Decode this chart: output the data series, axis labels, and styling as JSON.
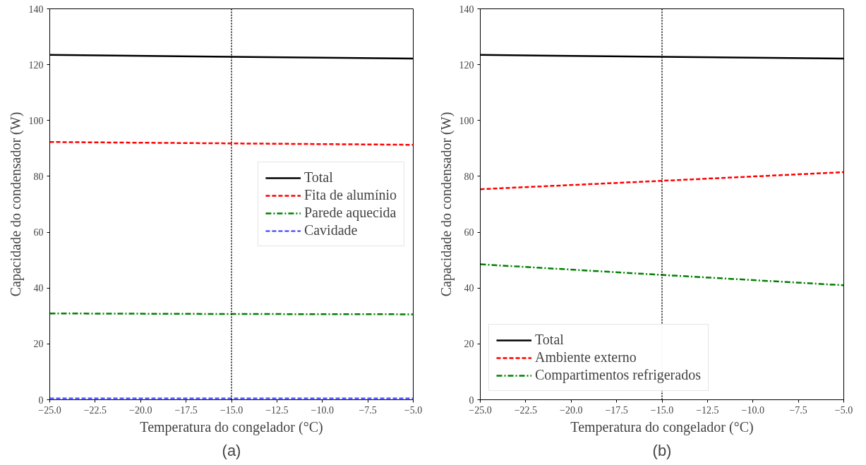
{
  "chart_data": [
    {
      "type": "line",
      "xlabel": "Temperatura do congelador (°C)",
      "ylabel": "Capacidade do condensador (W)",
      "x": [
        -25,
        -15,
        -5
      ],
      "series": [
        {
          "name": "Total",
          "color": "#000000",
          "line_style": "solid",
          "values": [
            123.5,
            122.8,
            122.2
          ]
        },
        {
          "name": "Fita de alumínio",
          "color": "#ff0000",
          "line_style": "dashed",
          "values": [
            92.3,
            91.8,
            91.3
          ]
        },
        {
          "name": "Parede aquecida",
          "color": "#008000",
          "line_style": "dashdot",
          "values": [
            30.9,
            30.7,
            30.6
          ]
        },
        {
          "name": "Cavidade",
          "color": "#3333ff",
          "line_style": "dashed",
          "values": [
            0.5,
            0.5,
            0.5
          ]
        }
      ],
      "xlim": [
        -25,
        -5
      ],
      "xticks": [
        {
          "value": -25,
          "label": "−25.0"
        },
        {
          "value": -22.5,
          "label": "−22.5"
        },
        {
          "value": -20,
          "label": "−20.0"
        },
        {
          "value": -17.5,
          "label": "−17.5"
        },
        {
          "value": -15,
          "label": "−15.0"
        },
        {
          "value": -12.5,
          "label": "−12.5"
        },
        {
          "value": -10,
          "label": "−10.0"
        },
        {
          "value": -7.5,
          "label": "−7.5"
        },
        {
          "value": -5,
          "label": "−5.0"
        }
      ],
      "ylim": [
        0,
        140
      ],
      "yticks": [
        0,
        20,
        40,
        60,
        80,
        100,
        120,
        140
      ],
      "ref_lines": [
        {
          "axis": "x",
          "value": -15,
          "color": "#000000",
          "line_style": "dotted"
        }
      ],
      "grid": false,
      "legend": "center right",
      "marker": "none",
      "annotations": [
        "(a)"
      ]
    },
    {
      "type": "line",
      "xlabel": "Temperatura do congelador (°C)",
      "ylabel": "Capacidade do condensador (W)",
      "x": [
        -25,
        -15,
        -5
      ],
      "series": [
        {
          "name": "Total",
          "color": "#000000",
          "line_style": "solid",
          "values": [
            123.5,
            122.8,
            122.2
          ]
        },
        {
          "name": "Ambiente externo",
          "color": "#ff0000",
          "line_style": "dashed",
          "values": [
            75.4,
            78.4,
            81.5
          ]
        },
        {
          "name": "Compartimentos refrigerados",
          "color": "#008000",
          "line_style": "dashdot",
          "values": [
            48.5,
            44.7,
            41.0
          ]
        }
      ],
      "xlim": [
        -25,
        -5
      ],
      "xticks": [
        {
          "value": -25,
          "label": "−25.0"
        },
        {
          "value": -22.5,
          "label": "−22.5"
        },
        {
          "value": -20,
          "label": "−20.0"
        },
        {
          "value": -17.5,
          "label": "−17.5"
        },
        {
          "value": -15,
          "label": "−15.0"
        },
        {
          "value": -12.5,
          "label": "−12.5"
        },
        {
          "value": -10,
          "label": "−10.0"
        },
        {
          "value": -7.5,
          "label": "−7.5"
        },
        {
          "value": -5,
          "label": "−5.0"
        }
      ],
      "ylim": [
        0,
        140
      ],
      "yticks": [
        0,
        20,
        40,
        60,
        80,
        100,
        120,
        140
      ],
      "ref_lines": [
        {
          "axis": "x",
          "value": -15,
          "color": "#000000",
          "line_style": "dotted"
        }
      ],
      "grid": false,
      "legend": "bottom left",
      "marker": "none",
      "annotations": [
        "(b)"
      ]
    }
  ]
}
